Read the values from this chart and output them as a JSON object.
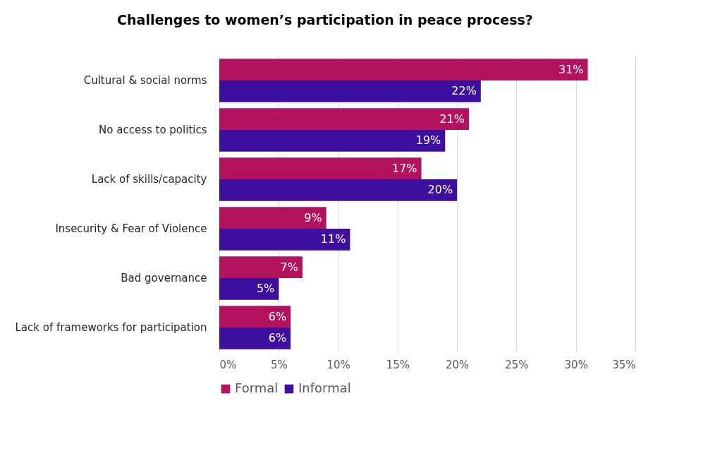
{
  "chart_data": {
    "type": "bar",
    "orientation": "horizontal",
    "title": "Challenges to women’s participation in peace process?",
    "categories": [
      "Cultural & social norms",
      "No access to politics",
      "Lack of skills/capacity",
      "Insecurity & Fear of Violence",
      "Bad governance",
      "Lack of frameworks for participation"
    ],
    "series": [
      {
        "name": "Formal",
        "color": "#b3135e",
        "values": [
          31,
          21,
          17,
          9,
          7,
          6
        ],
        "value_labels": [
          "31%",
          "21%",
          "17%",
          "9%",
          "7%",
          "6%"
        ]
      },
      {
        "name": "Informal",
        "color": "#3e0e9e",
        "values": [
          22,
          19,
          20,
          11,
          5,
          6
        ],
        "value_labels": [
          "22%",
          "19%",
          "20%",
          "11%",
          "5%",
          "6%"
        ]
      }
    ],
    "xlim": [
      0,
      35
    ],
    "xticks": [
      {
        "value": 0,
        "label": "0%"
      },
      {
        "value": 5,
        "label": "5%"
      },
      {
        "value": 10,
        "label": "10%"
      },
      {
        "value": 15,
        "label": "15%"
      },
      {
        "value": 20,
        "label": "20%"
      },
      {
        "value": 25,
        "label": "25%"
      },
      {
        "value": 30,
        "label": "30%"
      },
      {
        "value": 35,
        "label": "35%"
      }
    ],
    "grid": "x",
    "legend": "bottom"
  }
}
